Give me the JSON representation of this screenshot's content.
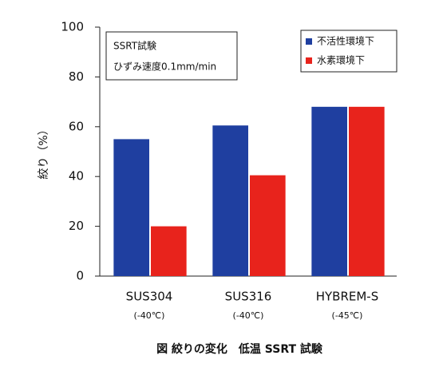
{
  "chart_data": {
    "type": "bar",
    "caption": "図 絞りの変化　低温 SSRT 試験",
    "y_label": "絞り（%）",
    "annotation": [
      "SSRT試験",
      "ひずみ速度0.1mm/min"
    ],
    "categories": [
      "SUS304",
      "SUS316",
      "HYBREM-S"
    ],
    "category_notes": [
      "(-40℃)",
      "(-40℃)",
      "(-45℃)"
    ],
    "series": [
      {
        "name": "不活性環境下",
        "color": "#1f3fa0",
        "values": [
          55,
          60.5,
          68
        ]
      },
      {
        "name": "水素環境下",
        "color": "#e8231c",
        "values": [
          20,
          40.5,
          68
        ]
      }
    ],
    "ylim": [
      0,
      100
    ],
    "yticks": [
      0,
      20,
      40,
      60,
      80,
      100
    ],
    "legend": "upper right"
  }
}
